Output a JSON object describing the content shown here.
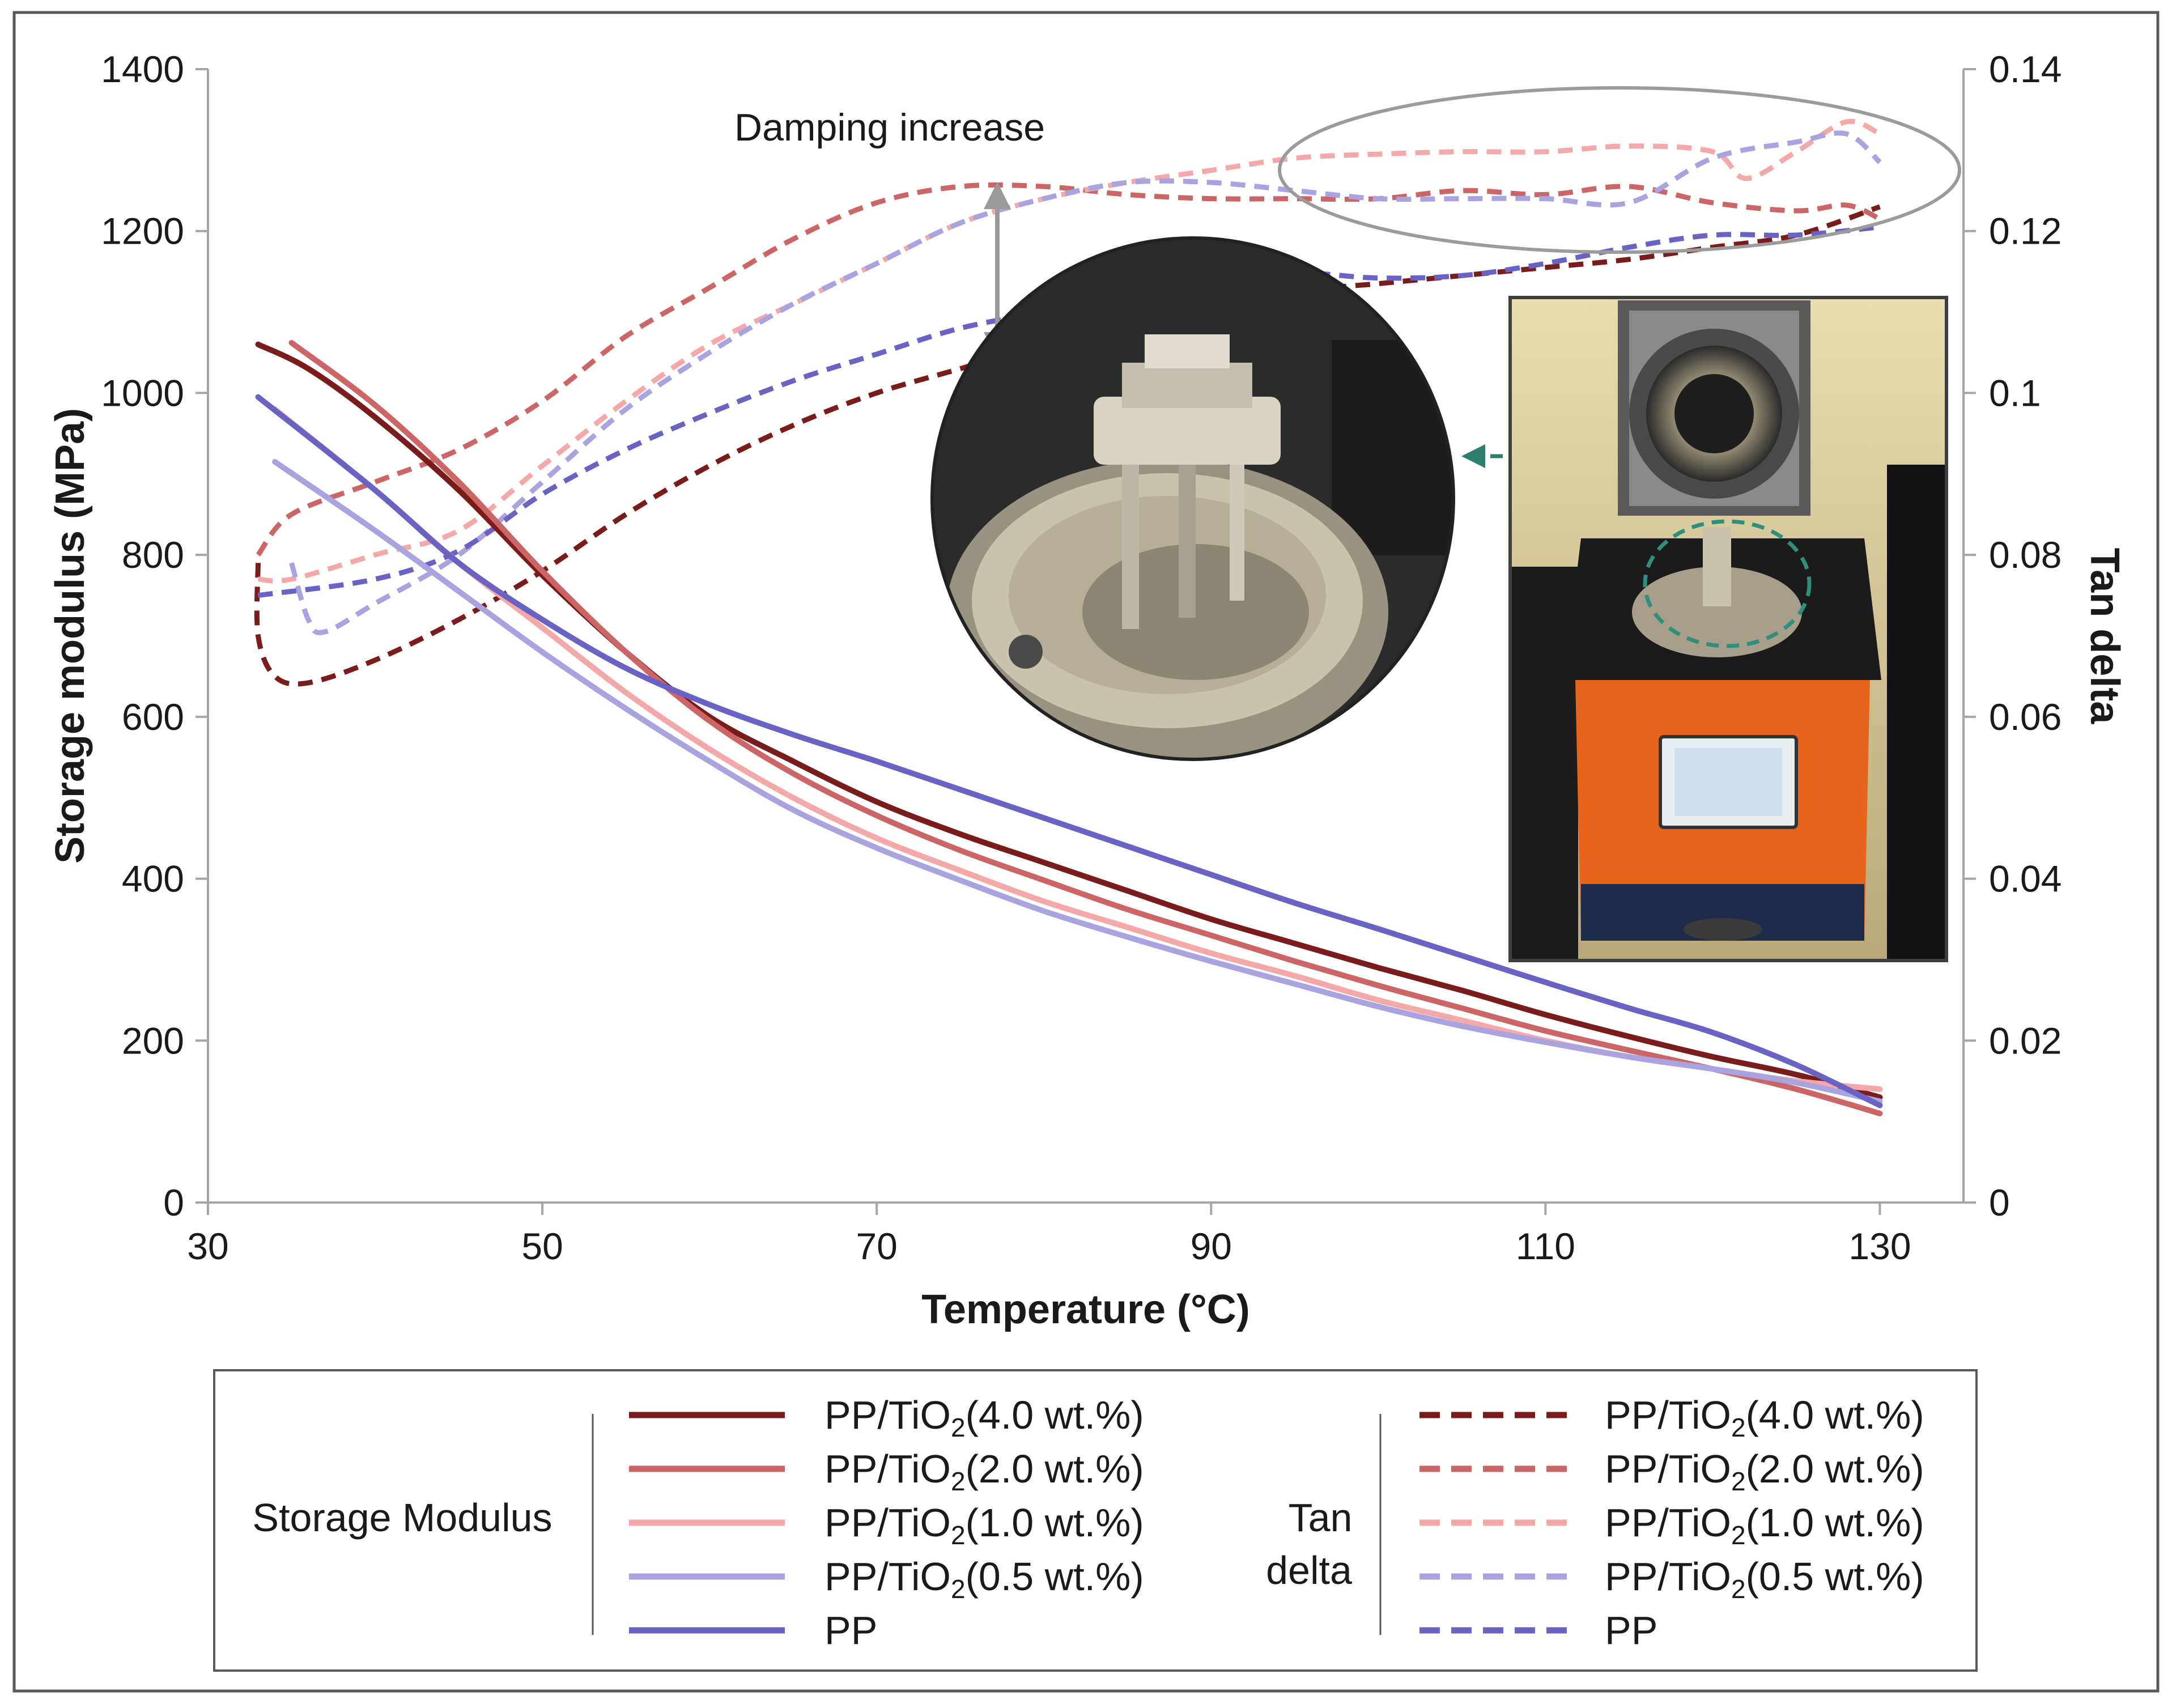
{
  "chart_data": {
    "type": "line",
    "x_axis": {
      "label": "Temperature (°C)",
      "range": [
        30,
        135
      ],
      "ticks": [
        30,
        50,
        70,
        90,
        110,
        130
      ]
    },
    "y_axis_left": {
      "label": "Storage modulus (MPa)",
      "range": [
        0,
        1400
      ],
      "ticks": [
        0,
        200,
        400,
        600,
        800,
        1000,
        1200,
        1400
      ]
    },
    "y_axis_right": {
      "label": "Tan delta",
      "range": [
        0,
        0.14
      ],
      "ticks": [
        "0",
        "0.02",
        "0.04",
        "0.06",
        "0.08",
        "0.1",
        "0.12",
        "0.14"
      ]
    },
    "grid": false,
    "annotation": "Damping increase",
    "legend": {
      "placement": "bottom",
      "group_storage": "Storage Modulus",
      "group_tan_line1": "Tan",
      "group_tan_line2": "delta"
    },
    "storage_modulus_series": [
      {
        "name": "PP/TiO2(4.0 wt.%)",
        "label_main": "PP/TiO",
        "label_sub": "2",
        "label_rest": "(4.0 wt.%)",
        "color": "#7a1c1c",
        "points": [
          [
            33,
            1060
          ],
          [
            36,
            1030
          ],
          [
            40,
            970
          ],
          [
            45,
            880
          ],
          [
            50,
            775
          ],
          [
            55,
            680
          ],
          [
            60,
            600
          ],
          [
            65,
            545
          ],
          [
            70,
            495
          ],
          [
            75,
            455
          ],
          [
            80,
            420
          ],
          [
            85,
            385
          ],
          [
            90,
            350
          ],
          [
            95,
            320
          ],
          [
            100,
            290
          ],
          [
            105,
            262
          ],
          [
            110,
            232
          ],
          [
            115,
            205
          ],
          [
            120,
            180
          ],
          [
            125,
            158
          ],
          [
            130,
            130
          ]
        ]
      },
      {
        "name": "PP/TiO2(2.0 wt.%)",
        "label_main": "PP/TiO",
        "label_sub": "2",
        "label_rest": "(2.0 wt.%)",
        "color": "#cc6666",
        "points": [
          [
            35,
            1062
          ],
          [
            40,
            985
          ],
          [
            45,
            890
          ],
          [
            50,
            780
          ],
          [
            55,
            680
          ],
          [
            60,
            595
          ],
          [
            65,
            530
          ],
          [
            70,
            478
          ],
          [
            75,
            435
          ],
          [
            80,
            398
          ],
          [
            85,
            362
          ],
          [
            90,
            330
          ],
          [
            95,
            298
          ],
          [
            100,
            268
          ],
          [
            105,
            240
          ],
          [
            110,
            212
          ],
          [
            115,
            188
          ],
          [
            120,
            165
          ],
          [
            125,
            140
          ],
          [
            130,
            110
          ]
        ]
      },
      {
        "name": "PP/TiO2(1.0 wt.%)",
        "label_main": "PP/TiO",
        "label_sub": "2",
        "label_rest": "(1.0 wt.%)",
        "color": "#f4a9a8",
        "points": [
          [
            34,
            980
          ],
          [
            40,
            880
          ],
          [
            45,
            790
          ],
          [
            50,
            710
          ],
          [
            55,
            630
          ],
          [
            60,
            560
          ],
          [
            65,
            500
          ],
          [
            70,
            450
          ],
          [
            75,
            410
          ],
          [
            80,
            372
          ],
          [
            85,
            340
          ],
          [
            90,
            308
          ],
          [
            95,
            280
          ],
          [
            100,
            250
          ],
          [
            105,
            225
          ],
          [
            110,
            200
          ],
          [
            115,
            180
          ],
          [
            120,
            165
          ],
          [
            125,
            150
          ],
          [
            130,
            140
          ]
        ]
      },
      {
        "name": "PP/TiO2(0.5 wt.%)",
        "label_main": "PP/TiO",
        "label_sub": "2",
        "label_rest": "(0.5 wt.%)",
        "color": "#a9a4e0",
        "points": [
          [
            34,
            915
          ],
          [
            40,
            830
          ],
          [
            45,
            755
          ],
          [
            50,
            680
          ],
          [
            55,
            610
          ],
          [
            60,
            545
          ],
          [
            65,
            485
          ],
          [
            70,
            438
          ],
          [
            75,
            398
          ],
          [
            80,
            360
          ],
          [
            85,
            328
          ],
          [
            90,
            298
          ],
          [
            95,
            270
          ],
          [
            100,
            242
          ],
          [
            105,
            218
          ],
          [
            110,
            198
          ],
          [
            115,
            180
          ],
          [
            120,
            165
          ],
          [
            125,
            148
          ],
          [
            130,
            125
          ]
        ]
      },
      {
        "name": "PP",
        "label_main": "PP",
        "label_sub": "",
        "label_rest": "",
        "color": "#6b63c4",
        "points": [
          [
            33,
            995
          ],
          [
            40,
            880
          ],
          [
            45,
            790
          ],
          [
            50,
            720
          ],
          [
            55,
            660
          ],
          [
            60,
            615
          ],
          [
            65,
            578
          ],
          [
            70,
            545
          ],
          [
            75,
            510
          ],
          [
            80,
            475
          ],
          [
            85,
            440
          ],
          [
            90,
            405
          ],
          [
            95,
            370
          ],
          [
            100,
            338
          ],
          [
            105,
            305
          ],
          [
            110,
            272
          ],
          [
            115,
            240
          ],
          [
            120,
            210
          ],
          [
            125,
            170
          ],
          [
            130,
            120
          ]
        ]
      }
    ],
    "tan_delta_series": [
      {
        "name": "PP/TiO2(4.0 wt.%)",
        "label_main": "PP/TiO",
        "label_sub": "2",
        "label_rest": "(4.0 wt.%)",
        "color": "#7a1c1c",
        "points": [
          [
            33,
            0.079
          ],
          [
            33,
            0.07
          ],
          [
            34,
            0.065
          ],
          [
            36,
            0.0642
          ],
          [
            40,
            0.067
          ],
          [
            45,
            0.072
          ],
          [
            50,
            0.078
          ],
          [
            55,
            0.085
          ],
          [
            60,
            0.091
          ],
          [
            65,
            0.096
          ],
          [
            70,
            0.1
          ],
          [
            75,
            0.103
          ],
          [
            80,
            0.106
          ],
          [
            85,
            0.108
          ],
          [
            90,
            0.11
          ],
          [
            95,
            0.1125
          ],
          [
            100,
            0.1135
          ],
          [
            105,
            0.1145
          ],
          [
            110,
            0.1155
          ],
          [
            115,
            0.1165
          ],
          [
            120,
            0.118
          ],
          [
            125,
            0.1195
          ],
          [
            130,
            0.123
          ]
        ]
      },
      {
        "name": "PP/TiO2(2.0 wt.%)",
        "label_main": "PP/TiO",
        "label_sub": "2",
        "label_rest": "(2.0 wt.%)",
        "color": "#cc6666",
        "points": [
          [
            33,
            0.08
          ],
          [
            35,
            0.085
          ],
          [
            40,
            0.089
          ],
          [
            45,
            0.093
          ],
          [
            50,
            0.099
          ],
          [
            55,
            0.107
          ],
          [
            60,
            0.113
          ],
          [
            65,
            0.119
          ],
          [
            70,
            0.1235
          ],
          [
            75,
            0.1255
          ],
          [
            80,
            0.1255
          ],
          [
            85,
            0.1245
          ],
          [
            90,
            0.124
          ],
          [
            95,
            0.124
          ],
          [
            100,
            0.124
          ],
          [
            105,
            0.125
          ],
          [
            110,
            0.1245
          ],
          [
            115,
            0.1255
          ],
          [
            120,
            0.1235
          ],
          [
            125,
            0.1225
          ],
          [
            128,
            0.1232
          ],
          [
            130,
            0.1215
          ]
        ]
      },
      {
        "name": "PP/TiO2(1.0 wt.%)",
        "label_main": "PP/TiO",
        "label_sub": "2",
        "label_rest": "(1.0 wt.%)",
        "color": "#f4a9a8",
        "points": [
          [
            33,
            0.077
          ],
          [
            35,
            0.077
          ],
          [
            40,
            0.08
          ],
          [
            45,
            0.083
          ],
          [
            50,
            0.091
          ],
          [
            55,
            0.099
          ],
          [
            60,
            0.106
          ],
          [
            65,
            0.111
          ],
          [
            70,
            0.116
          ],
          [
            75,
            0.121
          ],
          [
            80,
            0.124
          ],
          [
            85,
            0.126
          ],
          [
            90,
            0.1275
          ],
          [
            95,
            0.129
          ],
          [
            100,
            0.1295
          ],
          [
            105,
            0.1298
          ],
          [
            110,
            0.1298
          ],
          [
            115,
            0.1305
          ],
          [
            120,
            0.1298
          ],
          [
            122,
            0.1265
          ],
          [
            125,
            0.1298
          ],
          [
            128,
            0.1335
          ],
          [
            130,
            0.132
          ]
        ]
      },
      {
        "name": "PP/TiO2(0.5 wt.%)",
        "label_main": "PP/TiO",
        "label_sub": "2",
        "label_rest": "(0.5 wt.%)",
        "color": "#a9a4e0",
        "points": [
          [
            35,
            0.079
          ],
          [
            36,
            0.072
          ],
          [
            37,
            0.0705
          ],
          [
            40,
            0.074
          ],
          [
            45,
            0.08
          ],
          [
            50,
            0.089
          ],
          [
            55,
            0.098
          ],
          [
            60,
            0.105
          ],
          [
            65,
            0.111
          ],
          [
            70,
            0.116
          ],
          [
            75,
            0.121
          ],
          [
            80,
            0.124
          ],
          [
            85,
            0.126
          ],
          [
            90,
            0.126
          ],
          [
            95,
            0.125
          ],
          [
            100,
            0.124
          ],
          [
            105,
            0.124
          ],
          [
            110,
            0.124
          ],
          [
            115,
            0.1235
          ],
          [
            120,
            0.129
          ],
          [
            125,
            0.131
          ],
          [
            128,
            0.132
          ],
          [
            130,
            0.1285
          ]
        ]
      },
      {
        "name": "PP",
        "label_main": "PP",
        "label_sub": "",
        "label_rest": "",
        "color": "#6b63c4",
        "points": [
          [
            33,
            0.075
          ],
          [
            40,
            0.077
          ],
          [
            45,
            0.0805
          ],
          [
            50,
            0.0875
          ],
          [
            55,
            0.093
          ],
          [
            60,
            0.0975
          ],
          [
            65,
            0.1015
          ],
          [
            70,
            0.1048
          ],
          [
            75,
            0.108
          ],
          [
            80,
            0.11
          ],
          [
            85,
            0.112
          ],
          [
            90,
            0.1135
          ],
          [
            95,
            0.1148
          ],
          [
            100,
            0.1142
          ],
          [
            105,
            0.1145
          ],
          [
            110,
            0.116
          ],
          [
            115,
            0.118
          ],
          [
            120,
            0.1195
          ],
          [
            125,
            0.1195
          ],
          [
            130,
            0.1205
          ]
        ]
      }
    ]
  }
}
